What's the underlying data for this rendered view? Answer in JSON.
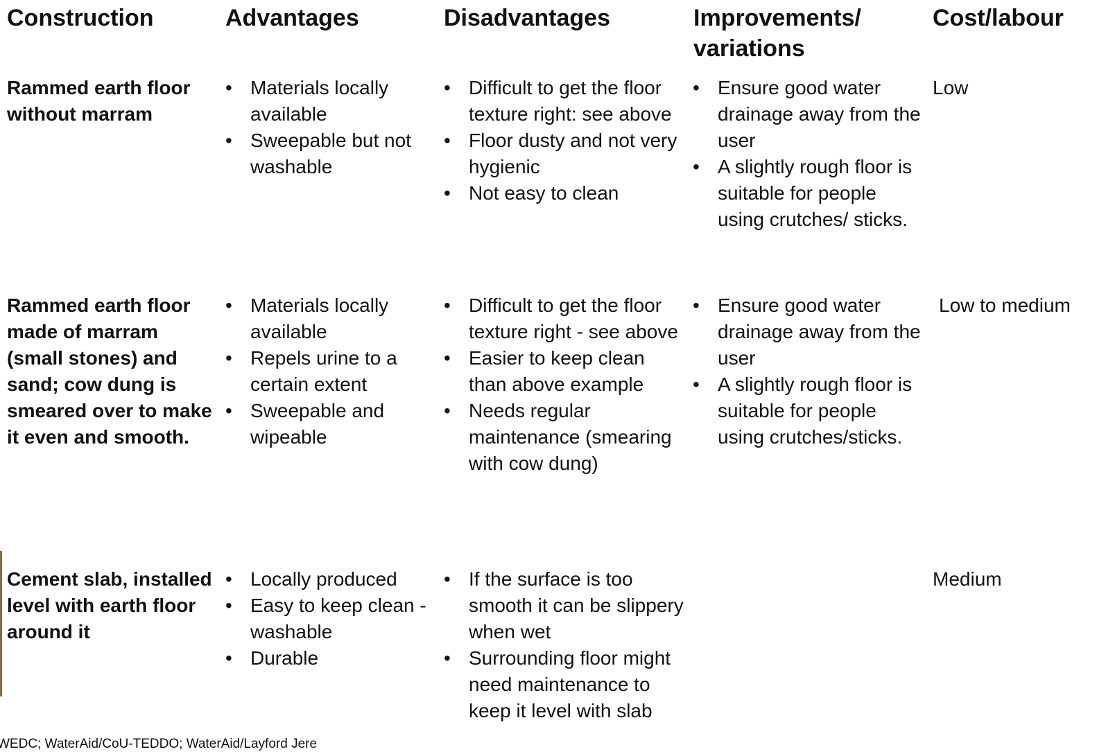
{
  "header": {
    "columns": [
      "Construction",
      "Advantages",
      "Disadvantages",
      "Improvements/ variations",
      "Cost/labour"
    ]
  },
  "table": {
    "rows": [
      {
        "construction": "Rammed earth floor without marram",
        "advantages": [
          "Materials locally available",
          "Sweepable but not washable"
        ],
        "disadvantages": [
          "Difficult to get the floor texture right: see above",
          "Floor dusty and not very hygienic",
          "Not easy to clean"
        ],
        "improvements": [
          "Ensure good water drainage away from the user",
          "A slightly rough floor is suitable for people using crutches/ sticks."
        ],
        "cost": "Low"
      },
      {
        "construction": "Rammed earth floor made of marram (small stones) and sand; cow dung is smeared over to make it even and smooth.",
        "advantages": [
          "Materials locally available",
          "Repels urine to a certain extent",
          "Sweepable and wipeable"
        ],
        "disadvantages": [
          "Difficult to get the floor texture right - see above",
          "Easier to keep clean than above example",
          "Needs regular maintenance (smearing with cow dung)"
        ],
        "improvements": [
          "Ensure good water drainage away from the user",
          "A slightly rough floor is suitable for people using crutches/sticks."
        ],
        "cost": "Low to medium"
      },
      {
        "construction": "Cement slab, installed level with earth floor around it",
        "advantages": [
          "Locally produced",
          "Easy to keep clean - washable",
          "Durable"
        ],
        "disadvantages": [
          "If the surface is too smooth it can be slippery when wet",
          "Surrounding floor might need maintenance to keep it level with slab"
        ],
        "cost": "Medium"
      }
    ]
  },
  "footer": {
    "credit": "WEDC; WaterAid/CoU-TEDDO; WaterAid/Layford Jere"
  }
}
